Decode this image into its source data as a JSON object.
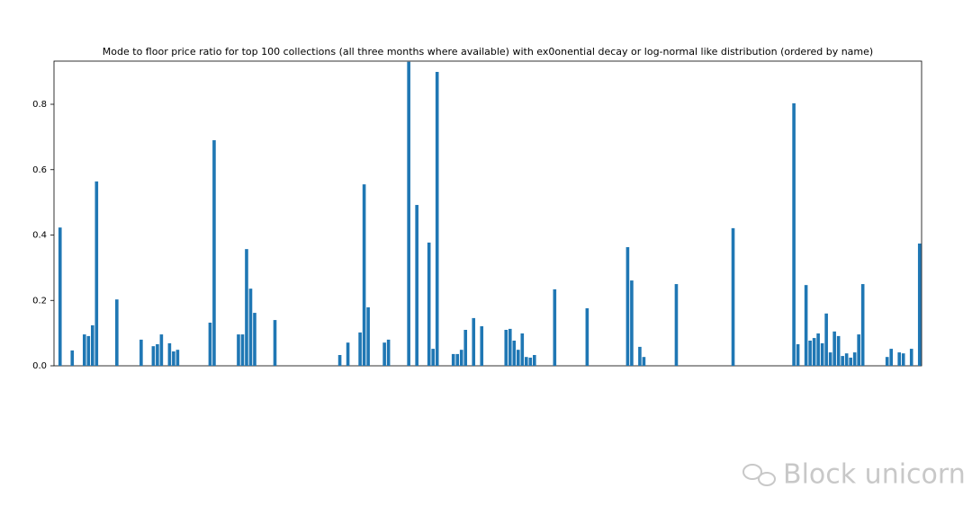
{
  "chart_data": {
    "type": "bar",
    "title": "Mode to floor price ratio for top 100 collections (all three months where available) with ex0onential decay or log-normal like distribution (ordered by name)",
    "categories": [
      null,
      null,
      null,
      null,
      null,
      null,
      null,
      null,
      null,
      null,
      null,
      null,
      null,
      null,
      null,
      null,
      null,
      null,
      null,
      null,
      null,
      null,
      null,
      null,
      null,
      null,
      null,
      null,
      null,
      null,
      null,
      null,
      null,
      null,
      null,
      null,
      null,
      null,
      null,
      null,
      null,
      null,
      null,
      null,
      null,
      null,
      null,
      null,
      null,
      null,
      null,
      null,
      null,
      null,
      null,
      null,
      null,
      null,
      null,
      null,
      null,
      null,
      null,
      null,
      null,
      null,
      null,
      null,
      null,
      null,
      null,
      null,
      null,
      null,
      null,
      null,
      null,
      null,
      null,
      null,
      null,
      null,
      null,
      null,
      null,
      null,
      null,
      null,
      null,
      null,
      null,
      null,
      null,
      null,
      null,
      null,
      null,
      null,
      null,
      null,
      null,
      null,
      null,
      null,
      null,
      null,
      null,
      null,
      null,
      null,
      null,
      null,
      null,
      null,
      null,
      null,
      null,
      null,
      null,
      null,
      null,
      null,
      null,
      null,
      null,
      null,
      null,
      null,
      null,
      null,
      null,
      null,
      null,
      null,
      null,
      null,
      null,
      null,
      null,
      null,
      null,
      null,
      null,
      null,
      null,
      null,
      null,
      null,
      null,
      null,
      null,
      null,
      null,
      null,
      null,
      null,
      null,
      null,
      null,
      null,
      null,
      null,
      null,
      null,
      null,
      null,
      null,
      null,
      null,
      null,
      null,
      null,
      null,
      null,
      null,
      null,
      null,
      null,
      null,
      null,
      null,
      null,
      null,
      null,
      null,
      null,
      null,
      null,
      null,
      null,
      null,
      null,
      null,
      null,
      null,
      null,
      null,
      null,
      null,
      null,
      null,
      null,
      null,
      null,
      null,
      null,
      null,
      null,
      null,
      null,
      null,
      null,
      null,
      null
    ],
    "values": [
      0,
      0.423,
      0,
      0,
      0.047,
      0,
      0,
      0.096,
      0.091,
      0.124,
      0.564,
      0,
      0,
      0,
      0,
      0.203,
      0,
      0,
      0,
      0,
      0,
      0.08,
      0,
      0,
      0.06,
      0.066,
      0.096,
      0,
      0.069,
      0.044,
      0.049,
      0,
      0,
      0,
      0,
      0,
      0,
      0,
      0.132,
      0.69,
      0,
      0,
      0,
      0,
      0,
      0.096,
      0.096,
      0.357,
      0.236,
      0.162,
      0,
      0,
      0,
      0,
      0.14,
      0,
      0,
      0,
      0,
      0,
      0,
      0,
      0,
      0,
      0,
      0,
      0,
      0,
      0,
      0,
      0.033,
      0,
      0.071,
      0,
      0,
      0.102,
      0.555,
      0.179,
      0,
      0,
      0,
      0.071,
      0.08,
      0,
      0,
      0,
      0,
      0.93,
      0,
      0.492,
      0,
      0,
      0.377,
      0.052,
      0.899,
      0,
      0,
      0,
      0.036,
      0.036,
      0.049,
      0.11,
      0,
      0.146,
      0,
      0.121,
      0,
      0,
      0,
      0,
      0,
      0.11,
      0.113,
      0.077,
      0.049,
      0.099,
      0.027,
      0.025,
      0.033,
      0,
      0,
      0,
      0,
      0.234,
      0,
      0,
      0,
      0,
      0,
      0,
      0,
      0.176,
      0,
      0,
      0,
      0,
      0,
      0,
      0,
      0,
      0,
      0.363,
      0.261,
      0,
      0.058,
      0.027,
      0,
      0,
      0,
      0,
      0,
      0,
      0,
      0.25,
      0,
      0,
      0,
      0,
      0,
      0,
      0,
      0,
      0,
      0,
      0,
      0,
      0,
      0.421,
      0,
      0,
      0,
      0,
      0,
      0,
      0,
      0,
      0,
      0,
      0,
      0,
      0,
      0,
      0.803,
      0.066,
      0,
      0.247,
      0.077,
      0.085,
      0.099,
      0.069,
      0.16,
      0.041,
      0.105,
      0.091,
      0.03,
      0.038,
      0.025,
      0.041,
      0.096,
      0.25,
      0,
      0,
      0,
      0,
      0,
      0.027,
      0.052,
      0,
      0.041,
      0.038,
      0,
      0.052,
      0,
      0.374
    ],
    "color": "#1f77b4",
    "ylim": [
      0,
      0.932
    ],
    "yticks": [
      {
        "value": 0,
        "label": "0.0"
      },
      0.2,
      0.4,
      0.6,
      0.8
    ],
    "grid": false
  },
  "watermark": "Block unicorn"
}
